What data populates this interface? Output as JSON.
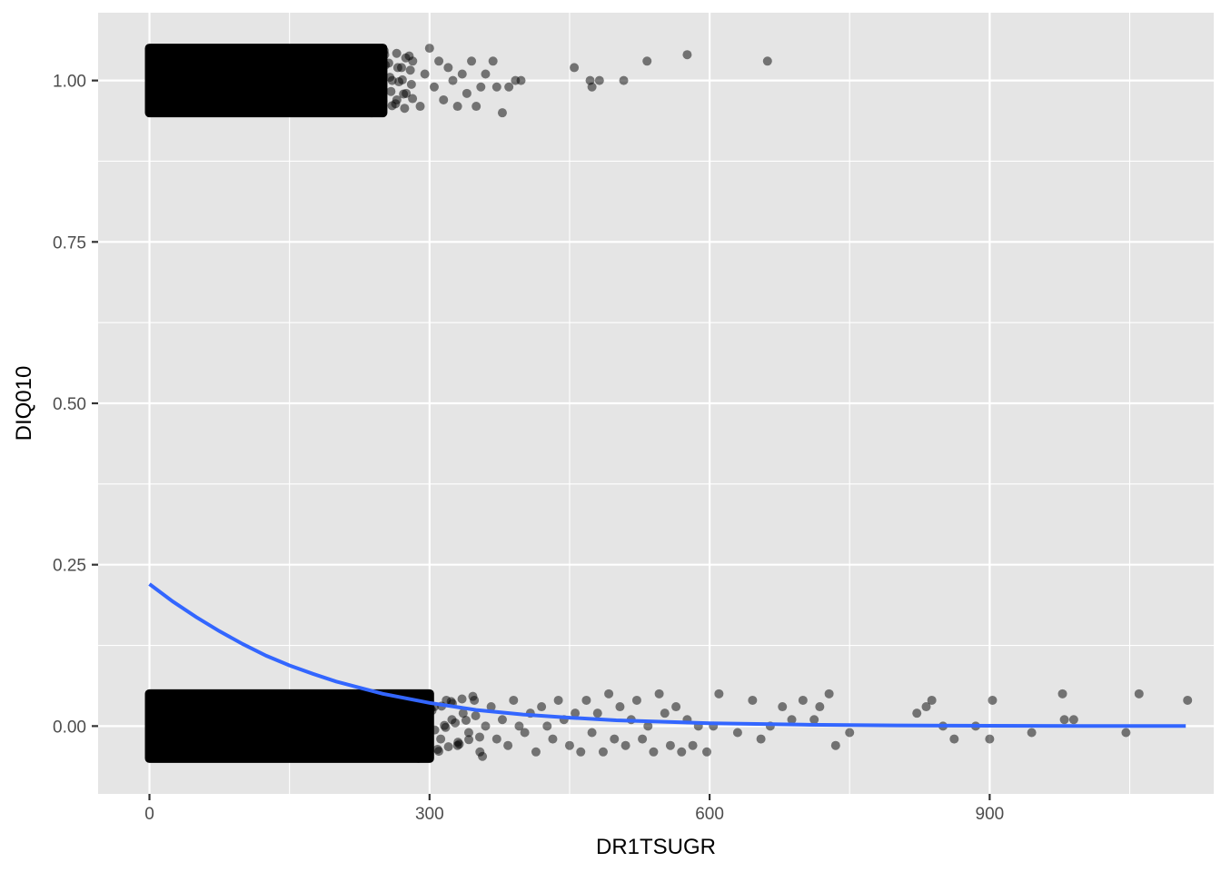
{
  "chart_data": {
    "type": "scatter",
    "title": "",
    "xlabel": "DR1TSUGR",
    "ylabel": "DIQ010",
    "xlim": [
      -55,
      1140
    ],
    "ylim": [
      -0.105,
      1.105
    ],
    "x_ticks": [
      {
        "value": 0,
        "label": "0"
      },
      {
        "value": 300,
        "label": "300"
      },
      {
        "value": 600,
        "label": "600"
      },
      {
        "value": 900,
        "label": "900"
      }
    ],
    "y_ticks": [
      {
        "value": 0,
        "label": "0.00"
      },
      {
        "value": 0.25,
        "label": "0.25"
      },
      {
        "value": 0.5,
        "label": "0.50"
      },
      {
        "value": 0.75,
        "label": "0.75"
      },
      {
        "value": 1,
        "label": "1.00"
      }
    ],
    "grid": true,
    "legend": "none",
    "colors": {
      "panel_background": "#e5e5e5",
      "grid": "#ffffff",
      "points": "#000000",
      "fit_line": "#3366ff"
    },
    "point_opacity": 0.5,
    "jitter_height": 0.05,
    "dense_bands": [
      {
        "y": 0,
        "x_range": [
          0,
          300
        ]
      },
      {
        "y": 1,
        "x_range": [
          0,
          250
        ]
      }
    ],
    "series": [
      {
        "type": "scatter",
        "points": [
          [
            252,
            1.04
          ],
          [
            260,
            1.0
          ],
          [
            265,
            0.97
          ],
          [
            270,
            1.02
          ],
          [
            275,
            0.98
          ],
          [
            282,
            1.03
          ],
          [
            290,
            0.96
          ],
          [
            295,
            1.01
          ],
          [
            300,
            1.05
          ],
          [
            305,
            0.99
          ],
          [
            310,
            1.03
          ],
          [
            315,
            0.97
          ],
          [
            320,
            1.02
          ],
          [
            325,
            1.0
          ],
          [
            330,
            0.96
          ],
          [
            335,
            1.01
          ],
          [
            340,
            0.98
          ],
          [
            345,
            1.03
          ],
          [
            350,
            0.96
          ],
          [
            355,
            0.99
          ],
          [
            360,
            1.01
          ],
          [
            368,
            1.03
          ],
          [
            372,
            0.99
          ],
          [
            378,
            0.95
          ],
          [
            385,
            0.99
          ],
          [
            392,
            1.0
          ],
          [
            398,
            1.0
          ],
          [
            455,
            1.02
          ],
          [
            472,
            1.0
          ],
          [
            474,
            0.99
          ],
          [
            482,
            1.0
          ],
          [
            508,
            1.0
          ],
          [
            533,
            1.03
          ],
          [
            576,
            1.04
          ],
          [
            662,
            1.03
          ],
          [
            305,
            0.03
          ],
          [
            312,
            -0.02
          ],
          [
            318,
            0.04
          ],
          [
            324,
            0.01
          ],
          [
            330,
            -0.03
          ],
          [
            336,
            0.02
          ],
          [
            342,
            -0.01
          ],
          [
            348,
            0.04
          ],
          [
            354,
            -0.04
          ],
          [
            360,
            0.0
          ],
          [
            366,
            0.03
          ],
          [
            372,
            -0.02
          ],
          [
            378,
            0.01
          ],
          [
            384,
            -0.03
          ],
          [
            390,
            0.04
          ],
          [
            396,
            0.0
          ],
          [
            402,
            -0.01
          ],
          [
            408,
            0.02
          ],
          [
            414,
            -0.04
          ],
          [
            420,
            0.03
          ],
          [
            426,
            0.0
          ],
          [
            432,
            -0.02
          ],
          [
            438,
            0.04
          ],
          [
            444,
            0.01
          ],
          [
            450,
            -0.03
          ],
          [
            456,
            0.02
          ],
          [
            462,
            -0.04
          ],
          [
            468,
            0.04
          ],
          [
            474,
            -0.01
          ],
          [
            480,
            0.02
          ],
          [
            486,
            -0.04
          ],
          [
            492,
            0.05
          ],
          [
            498,
            -0.02
          ],
          [
            504,
            0.03
          ],
          [
            510,
            -0.03
          ],
          [
            516,
            0.01
          ],
          [
            522,
            0.04
          ],
          [
            528,
            -0.02
          ],
          [
            534,
            0.0
          ],
          [
            540,
            -0.04
          ],
          [
            546,
            0.05
          ],
          [
            552,
            0.02
          ],
          [
            558,
            -0.03
          ],
          [
            564,
            0.03
          ],
          [
            570,
            -0.04
          ],
          [
            576,
            0.01
          ],
          [
            582,
            -0.03
          ],
          [
            588,
            0.0
          ],
          [
            597,
            -0.04
          ],
          [
            604,
            0.0
          ],
          [
            610,
            0.05
          ],
          [
            630,
            -0.01
          ],
          [
            646,
            0.04
          ],
          [
            655,
            -0.02
          ],
          [
            665,
            0.0
          ],
          [
            678,
            0.03
          ],
          [
            688,
            0.01
          ],
          [
            700,
            0.04
          ],
          [
            712,
            0.01
          ],
          [
            718,
            0.03
          ],
          [
            728,
            0.05
          ],
          [
            735,
            -0.03
          ],
          [
            750,
            -0.01
          ],
          [
            822,
            0.02
          ],
          [
            832,
            0.03
          ],
          [
            838,
            0.04
          ],
          [
            850,
            0.0
          ],
          [
            862,
            -0.02
          ],
          [
            885,
            0.0
          ],
          [
            900,
            -0.02
          ],
          [
            903,
            0.04
          ],
          [
            945,
            -0.01
          ],
          [
            978,
            0.05
          ],
          [
            980,
            0.01
          ],
          [
            990,
            0.01
          ],
          [
            1046,
            -0.01
          ],
          [
            1060,
            0.05
          ],
          [
            1112,
            0.04
          ]
        ]
      },
      {
        "type": "line",
        "name": "",
        "x": [
          0,
          25,
          50,
          75,
          100,
          125,
          150,
          175,
          200,
          250,
          300,
          350,
          400,
          450,
          500,
          600,
          700,
          800,
          900,
          1000,
          1110
        ],
        "y": [
          0.22,
          0.193,
          0.169,
          0.147,
          0.127,
          0.109,
          0.094,
          0.081,
          0.069,
          0.05,
          0.036,
          0.025,
          0.018,
          0.013,
          0.009,
          0.0045,
          0.0022,
          0.0011,
          0.0005,
          0.0002,
          0.0001
        ]
      }
    ]
  }
}
